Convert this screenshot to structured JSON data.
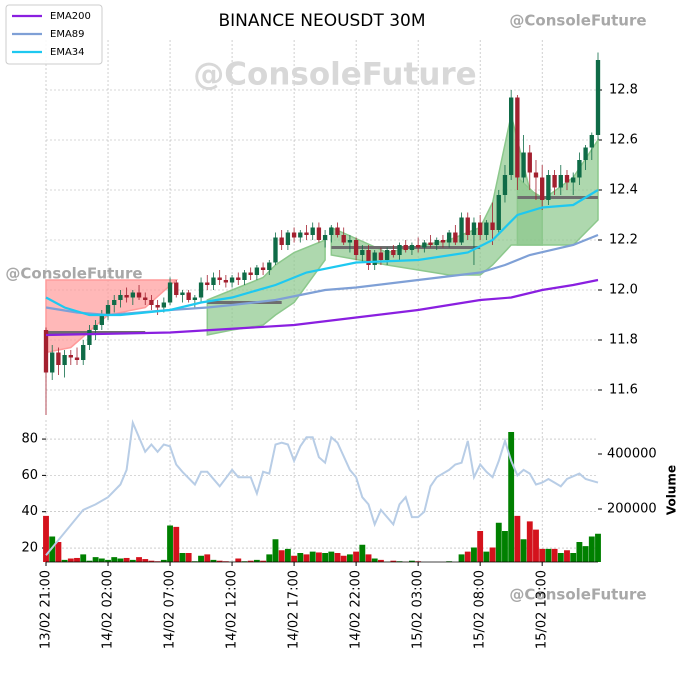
{
  "chart_data": {
    "type": "candlestick",
    "title": "BINANCE NEOUSDT 30M",
    "watermark": "@ConsoleFuture",
    "y2_label": "Volume",
    "xlim": [
      0,
      89
    ],
    "xticks": [
      {
        "value": 0,
        "label": "13/02 21:00"
      },
      {
        "value": 10,
        "label": "14/02 02:00"
      },
      {
        "value": 20,
        "label": "14/02 07:00"
      },
      {
        "value": 30,
        "label": "14/02 12:00"
      },
      {
        "value": 40,
        "label": "14/02 17:00"
      },
      {
        "value": 50,
        "label": "14/02 22:00"
      },
      {
        "value": 60,
        "label": "15/02 03:00"
      },
      {
        "value": 70,
        "label": "15/02 08:00"
      },
      {
        "value": 80,
        "label": "15/02 13:00"
      }
    ],
    "ylim": [
      11.52,
      13.0
    ],
    "yticks": [
      11.6,
      11.8,
      {
        "value": 12,
        "label": "12.0"
      },
      12.2,
      12.4,
      12.6,
      12.8
    ],
    "grid": true,
    "legend": "upper left",
    "up_color": "#0f6b47",
    "down_color": "#a3202f",
    "open": [
      11.84,
      11.67,
      11.75,
      11.7,
      11.74,
      11.73,
      11.72,
      11.78,
      11.84,
      11.86,
      11.9,
      11.94,
      11.96,
      11.98,
      11.97,
      11.99,
      11.97,
      11.96,
      11.94,
      11.93,
      11.95,
      12.03,
      11.98,
      11.99,
      11.96,
      11.97,
      12.03,
      12.02,
      12.05,
      12.04,
      12.03,
      12.05,
      12.04,
      12.07,
      12.06,
      12.09,
      12.08,
      12.11,
      12.21,
      12.18,
      12.23,
      12.21,
      12.23,
      12.22,
      12.25,
      12.2,
      12.22,
      12.25,
      12.22,
      12.19,
      12.2,
      12.14,
      12.16,
      12.1,
      12.15,
      12.12,
      12.16,
      12.14,
      12.18,
      12.16,
      12.18,
      12.17,
      12.19,
      12.18,
      12.2,
      12.19,
      12.23,
      12.19,
      12.29,
      12.22,
      12.27,
      12.22,
      12.27,
      12.24,
      12.38,
      12.46,
      12.77,
      12.45,
      12.55,
      12.47,
      12.45,
      12.36,
      12.46,
      12.41,
      12.46,
      12.43,
      12.45,
      12.52,
      12.57,
      12.62
    ],
    "high": [
      11.85,
      11.78,
      11.77,
      11.76,
      11.76,
      11.77,
      11.8,
      11.86,
      11.88,
      11.92,
      11.96,
      11.98,
      12.0,
      12.01,
      12.0,
      12.02,
      11.99,
      11.98,
      11.96,
      11.97,
      12.05,
      12.04,
      12.0,
      12.0,
      11.98,
      12.05,
      12.06,
      12.07,
      12.08,
      12.06,
      12.06,
      12.07,
      12.08,
      12.09,
      12.1,
      12.11,
      12.12,
      12.23,
      12.24,
      12.24,
      12.25,
      12.24,
      12.26,
      12.27,
      12.27,
      12.24,
      12.26,
      12.27,
      12.25,
      12.22,
      12.21,
      12.18,
      12.18,
      12.16,
      12.17,
      12.17,
      12.18,
      12.19,
      12.2,
      12.19,
      12.21,
      12.2,
      12.22,
      12.21,
      12.22,
      12.24,
      12.26,
      12.31,
      12.31,
      12.29,
      12.3,
      12.28,
      12.35,
      12.4,
      12.5,
      12.8,
      12.78,
      12.62,
      12.58,
      12.52,
      12.5,
      12.48,
      12.48,
      12.5,
      12.48,
      12.47,
      12.55,
      12.58,
      12.63,
      12.95
    ],
    "low": [
      11.5,
      11.64,
      11.66,
      11.65,
      11.7,
      11.7,
      11.7,
      11.76,
      11.8,
      11.84,
      11.88,
      11.91,
      11.93,
      11.95,
      11.94,
      11.96,
      11.94,
      11.92,
      11.9,
      11.91,
      11.94,
      11.97,
      11.95,
      11.95,
      11.93,
      11.95,
      12.0,
      12.0,
      12.02,
      12.01,
      12.01,
      12.02,
      12.02,
      12.04,
      12.04,
      12.06,
      12.06,
      12.1,
      12.16,
      12.16,
      12.19,
      12.19,
      12.2,
      12.2,
      12.19,
      12.17,
      12.19,
      12.21,
      12.18,
      12.15,
      12.12,
      12.11,
      12.08,
      12.08,
      12.1,
      12.1,
      12.13,
      12.12,
      12.15,
      12.14,
      12.15,
      12.15,
      12.17,
      12.16,
      12.17,
      12.17,
      12.18,
      12.18,
      12.2,
      12.1,
      12.2,
      12.2,
      12.18,
      12.22,
      12.35,
      12.44,
      12.4,
      12.43,
      12.4,
      12.36,
      12.32,
      12.34,
      12.38,
      12.38,
      12.4,
      12.38,
      12.42,
      12.48,
      12.52,
      12.6
    ],
    "close": [
      11.67,
      11.75,
      11.7,
      11.74,
      11.73,
      11.72,
      11.78,
      11.84,
      11.86,
      11.9,
      11.94,
      11.96,
      11.98,
      11.97,
      11.99,
      11.97,
      11.96,
      11.94,
      11.93,
      11.95,
      12.03,
      11.98,
      11.99,
      11.96,
      11.97,
      12.03,
      12.02,
      12.05,
      12.04,
      12.03,
      12.05,
      12.04,
      12.07,
      12.06,
      12.09,
      12.08,
      12.11,
      12.21,
      12.18,
      12.23,
      12.21,
      12.23,
      12.22,
      12.25,
      12.2,
      12.22,
      12.25,
      12.22,
      12.19,
      12.2,
      12.14,
      12.16,
      12.1,
      12.15,
      12.12,
      12.16,
      12.14,
      12.18,
      12.16,
      12.18,
      12.17,
      12.19,
      12.18,
      12.2,
      12.19,
      12.23,
      12.19,
      12.29,
      12.22,
      12.27,
      12.22,
      12.27,
      12.24,
      12.38,
      12.46,
      12.77,
      12.45,
      12.55,
      12.47,
      12.45,
      12.36,
      12.46,
      12.41,
      12.46,
      12.43,
      12.45,
      12.52,
      12.57,
      12.62,
      12.92
    ],
    "series": [
      {
        "name": "EMA200",
        "color": "#8a1fe0",
        "x": [
          0,
          20,
          40,
          50,
          60,
          70,
          75,
          80,
          85,
          89
        ],
        "values": [
          11.82,
          11.83,
          11.86,
          11.89,
          11.92,
          11.96,
          11.97,
          12.0,
          12.02,
          12.04
        ]
      },
      {
        "name": "EMA89",
        "color": "#7fa0d6",
        "x": [
          0,
          5,
          10,
          20,
          26,
          30,
          37,
          45,
          50,
          60,
          70,
          74,
          78,
          85,
          89
        ],
        "values": [
          11.93,
          11.91,
          11.9,
          11.92,
          11.93,
          11.94,
          11.96,
          12.0,
          12.01,
          12.04,
          12.07,
          12.1,
          12.14,
          12.18,
          12.22
        ]
      },
      {
        "name": "EMA34",
        "color": "#1ec8f0",
        "x": [
          0,
          3,
          7,
          12,
          20,
          25,
          30,
          37,
          42,
          50,
          60,
          68,
          72,
          76,
          80,
          85,
          89
        ],
        "values": [
          11.97,
          11.93,
          11.9,
          11.9,
          11.92,
          11.95,
          11.97,
          12.02,
          12.07,
          12.11,
          12.12,
          12.15,
          12.2,
          12.3,
          12.33,
          12.34,
          12.4
        ]
      }
    ],
    "zones": [
      {
        "color": "#ff9a9a",
        "x": [
          0,
          4,
          10,
          16,
          21
        ],
        "upper": [
          12.04,
          12.04,
          12.04,
          12.04,
          12.04
        ],
        "lower": [
          11.75,
          11.77,
          11.9,
          11.93,
          12.04
        ]
      },
      {
        "color": "#8cc88c",
        "x": [
          26,
          30,
          35,
          37,
          40,
          45
        ],
        "upper": [
          11.96,
          12.0,
          12.05,
          12.1,
          12.15,
          12.2
        ],
        "lower": [
          11.82,
          11.84,
          11.86,
          11.9,
          11.95,
          12.12
        ]
      },
      {
        "color": "#8cc88c",
        "x": [
          46,
          55,
          65,
          70,
          72,
          75,
          78,
          80
        ],
        "upper": [
          12.25,
          12.15,
          12.2,
          12.25,
          12.35,
          12.7,
          12.4,
          12.37
        ],
        "lower": [
          12.14,
          12.1,
          12.06,
          12.06,
          12.1,
          12.18,
          12.18,
          12.18
        ]
      },
      {
        "color": "#8cc88c",
        "x": [
          76,
          80,
          85,
          89
        ],
        "upper": [
          12.45,
          12.36,
          12.45,
          12.6
        ],
        "lower": [
          12.18,
          12.18,
          12.18,
          12.28
        ]
      }
    ],
    "level_color": "#6e6e6e",
    "levels": [
      {
        "x": [
          0,
          16
        ],
        "y": 11.83
      },
      {
        "x": [
          26,
          38
        ],
        "y": 11.95
      },
      {
        "x": [
          46,
          70
        ],
        "y": 12.17
      },
      {
        "x": [
          76,
          89
        ],
        "y": 12.37
      }
    ],
    "lower_ylim": [
      12.3,
      90.5
    ],
    "lower_yticks": [
      20,
      40,
      60,
      80
    ],
    "oscillator": {
      "color": "#b8cde6",
      "x": [
        0,
        6,
        8,
        10,
        12,
        13,
        14,
        16,
        17,
        18,
        19,
        20,
        21,
        22,
        24,
        25,
        26,
        28,
        30,
        31,
        33,
        34,
        35,
        36,
        37,
        38,
        39,
        40,
        41,
        42,
        43,
        44,
        45,
        46,
        47,
        49,
        50,
        51,
        52,
        53,
        54,
        55,
        56,
        57,
        58,
        59,
        60,
        61,
        62,
        63,
        65,
        66,
        67,
        68,
        69,
        70,
        71,
        72,
        73,
        74,
        75,
        76,
        77,
        78,
        79,
        80,
        81,
        82,
        83,
        84,
        86,
        87,
        88,
        89
      ],
      "values": [
        16,
        41,
        44,
        48,
        55,
        63,
        89,
        73,
        77,
        73,
        77,
        76,
        66,
        62,
        55,
        62,
        62,
        54,
        63,
        59,
        59,
        50,
        62,
        61,
        77,
        78,
        77,
        68,
        76,
        81,
        81,
        70,
        67,
        81,
        78,
        63,
        59,
        48,
        44,
        33,
        41,
        37,
        33,
        44,
        48,
        37,
        37,
        40,
        54,
        59,
        63,
        66,
        67,
        79,
        59,
        66,
        62,
        59,
        68,
        79,
        68,
        60,
        63,
        61,
        55,
        56,
        58,
        56,
        54,
        58,
        61,
        58,
        57,
        56
      ]
    },
    "y2lim": [
      7300,
      523600
    ],
    "y2ticks": [
      200000,
      400000
    ],
    "volume_up_color": "#008000",
    "volume_down_color": "#d4121c",
    "volume": [
      175000,
      100000,
      80000,
      15000,
      20000,
      22000,
      35000,
      12000,
      25000,
      20000,
      15000,
      25000,
      20000,
      22000,
      15000,
      25000,
      18000,
      12000,
      10000,
      15000,
      140000,
      135000,
      40000,
      40000,
      10000,
      30000,
      35000,
      15000,
      12000,
      10000,
      8000,
      20000,
      10000,
      12000,
      15000,
      12000,
      35000,
      90000,
      50000,
      55000,
      30000,
      40000,
      35000,
      45000,
      42000,
      40000,
      45000,
      40000,
      30000,
      35000,
      45000,
      70000,
      35000,
      20000,
      15000,
      8000,
      12000,
      10000,
      8000,
      12000,
      10000,
      5000,
      3000,
      4000,
      5000,
      10000,
      6000,
      35000,
      45000,
      60000,
      120000,
      45000,
      60000,
      150000,
      120000,
      480000,
      175000,
      90000,
      155000,
      125000,
      55000,
      55000,
      55000,
      40000,
      50000,
      40000,
      80000,
      65000,
      100000,
      110000
    ]
  }
}
